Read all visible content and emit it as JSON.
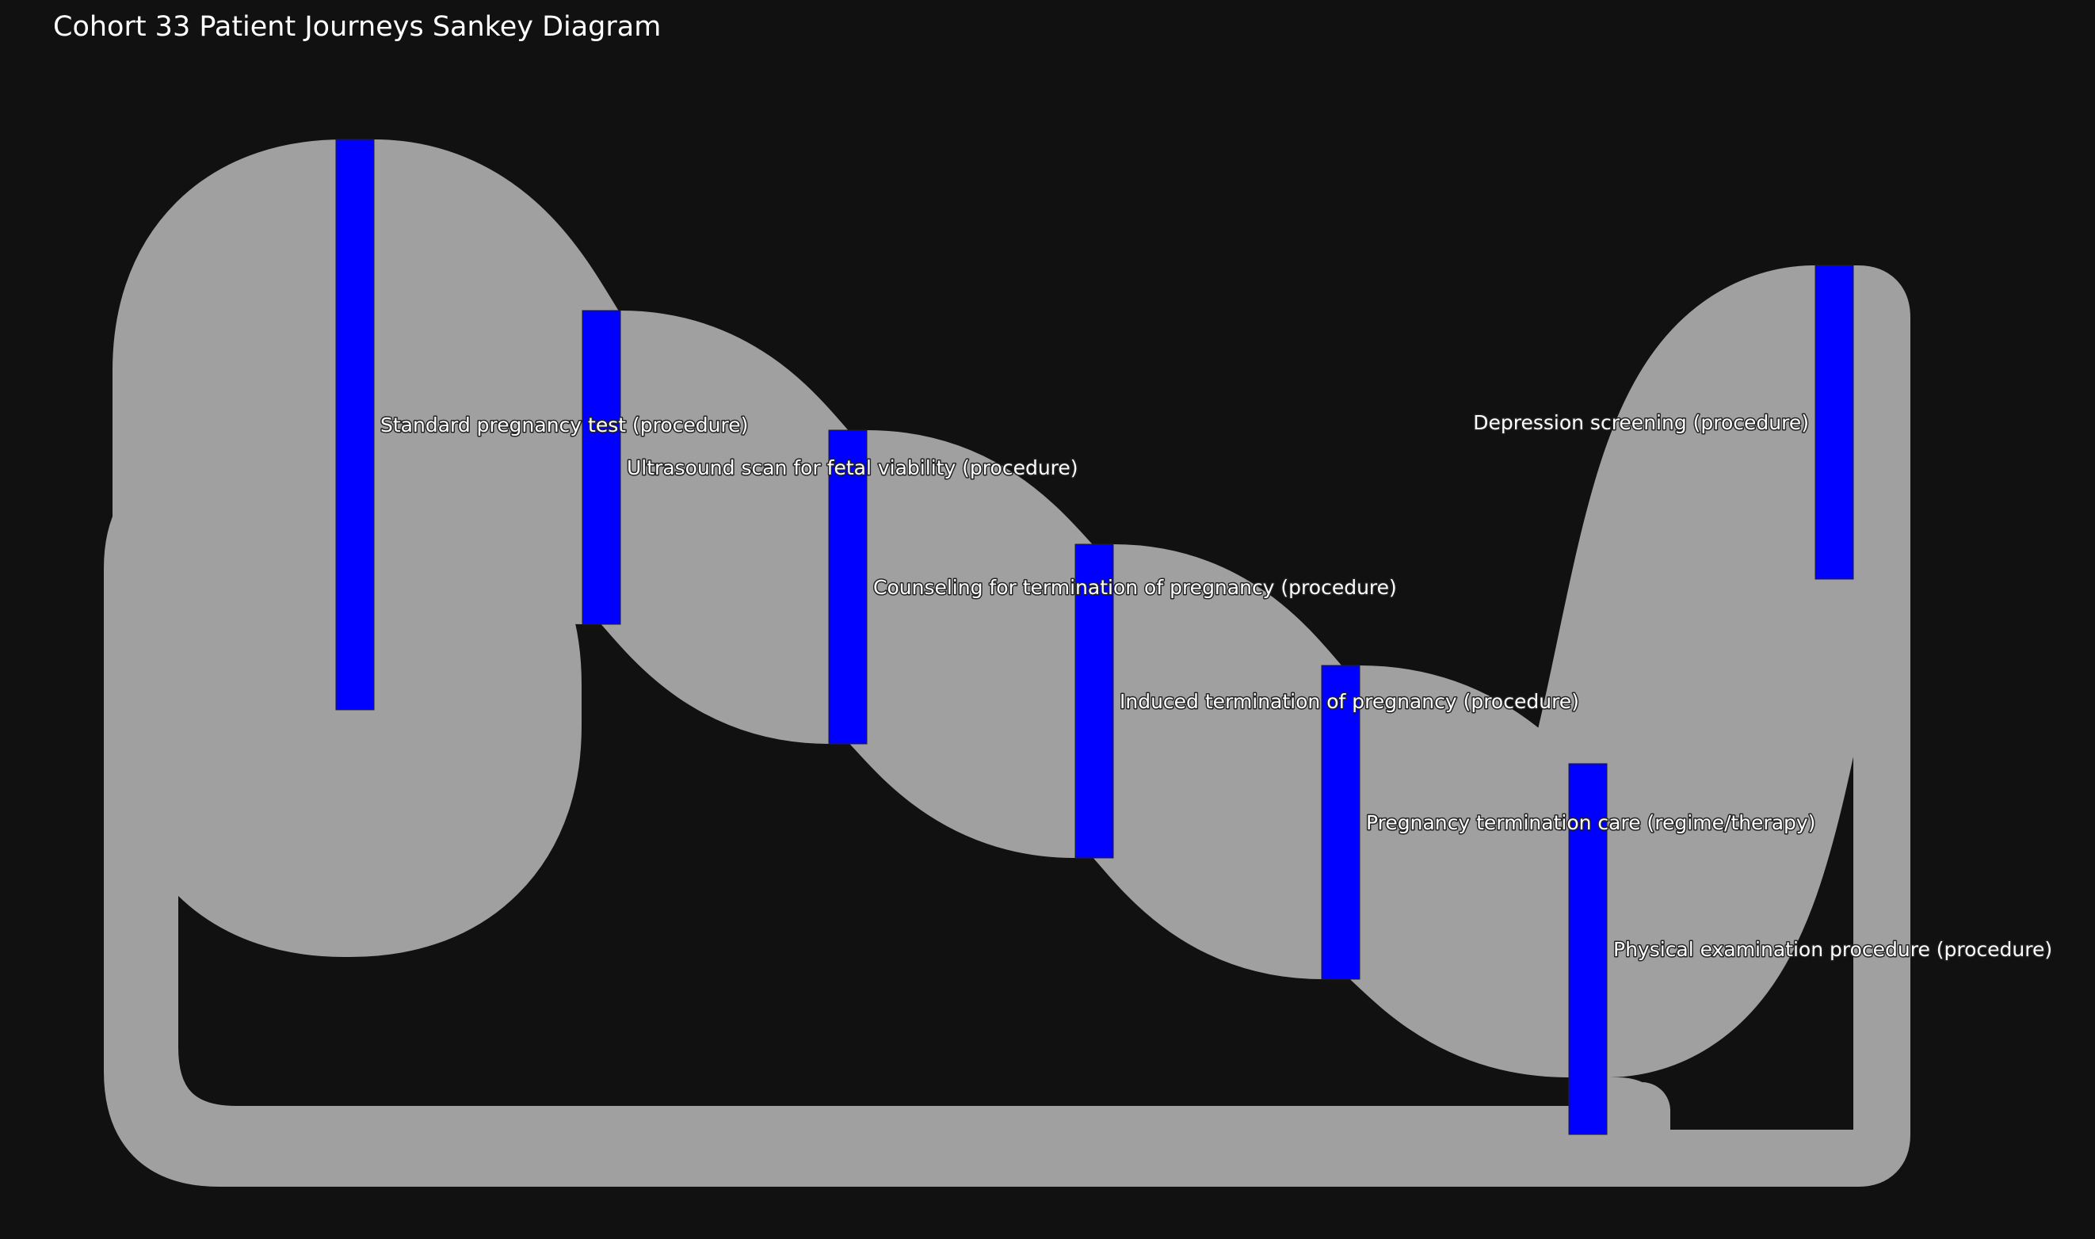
{
  "title": "Cohort 33 Patient Journeys Sankey Diagram",
  "colors": {
    "background": "#111111",
    "node": "#0000ff",
    "link": "#a0a0a0",
    "text": "#ffffff"
  },
  "chart_data": {
    "type": "sankey",
    "nodes": [
      {
        "id": "n0",
        "label": "Standard pregnancy test (procedure)"
      },
      {
        "id": "n1",
        "label": "Ultrasound scan for fetal viability (procedure)"
      },
      {
        "id": "n2",
        "label": "Counseling for termination of pregnancy (procedure)"
      },
      {
        "id": "n3",
        "label": "Induced termination of pregnancy (procedure)"
      },
      {
        "id": "n4",
        "label": "Pregnancy termination care (regime/therapy)"
      },
      {
        "id": "n5",
        "label": "Physical examination procedure (procedure)"
      },
      {
        "id": "n6",
        "label": "Depression screening (procedure)"
      }
    ],
    "links": [
      {
        "source": "n0",
        "target": "n1",
        "value": 22
      },
      {
        "source": "n0",
        "target": "n0",
        "value": 18
      },
      {
        "source": "n1",
        "target": "n2",
        "value": 22
      },
      {
        "source": "n2",
        "target": "n3",
        "value": 22
      },
      {
        "source": "n3",
        "target": "n4",
        "value": 22
      },
      {
        "source": "n4",
        "target": "n5",
        "value": 22
      },
      {
        "source": "n5",
        "target": "n6",
        "value": 22
      },
      {
        "source": "n5",
        "target": "n0",
        "value": 4
      },
      {
        "source": "n6",
        "target": "n0",
        "value": 4
      }
    ]
  }
}
